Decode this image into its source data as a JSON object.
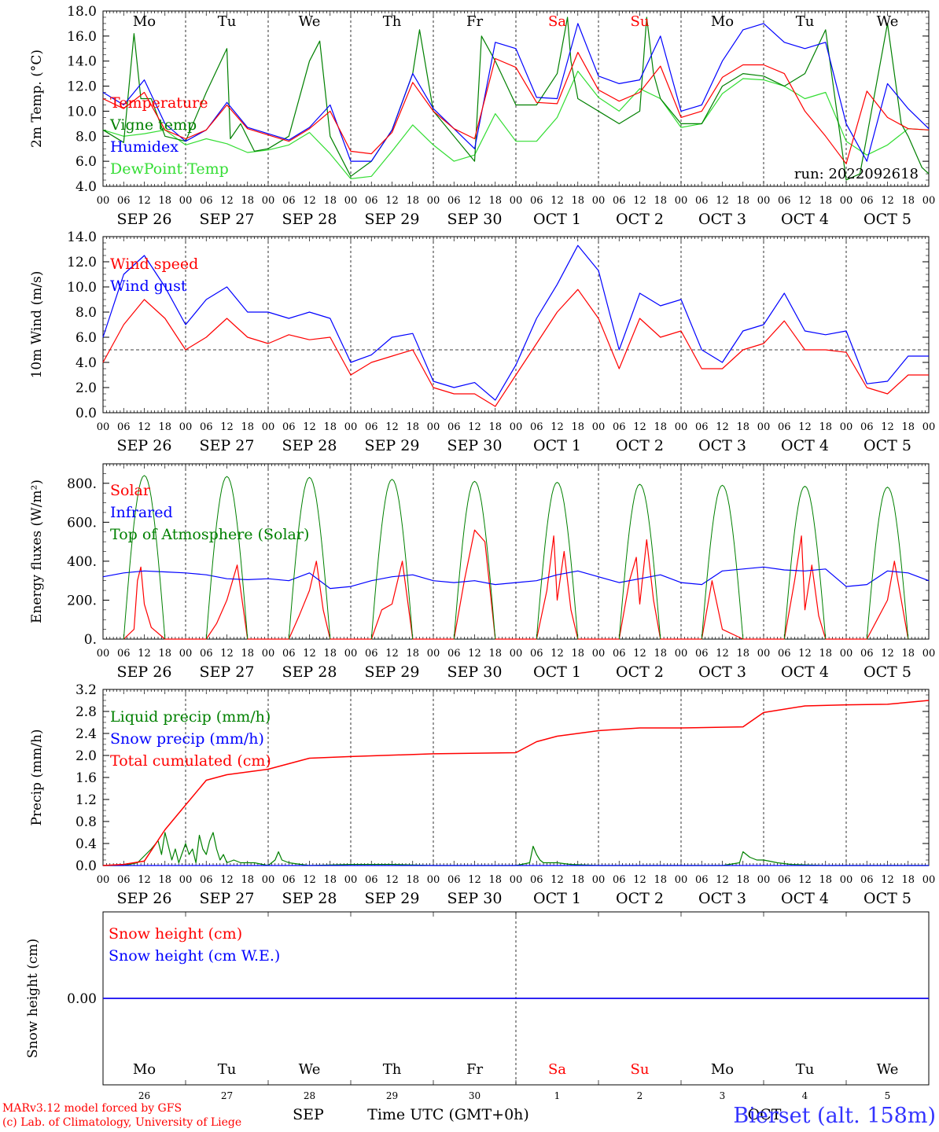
{
  "colors": {
    "temperature": "#ff0000",
    "vigne": "#008000",
    "humidex": "#0000ff",
    "dewpoint": "#33dd33",
    "wind_speed": "#ff0000",
    "wind_gust": "#0000ff",
    "solar": "#ff0000",
    "infrared": "#0000ff",
    "toa": "#008000",
    "liquid": "#008000",
    "snow_precip": "#0000ff",
    "cumulated": "#ff0000",
    "snow_height": "#ff0000",
    "snow_we": "#0000ff",
    "weekend": "#ff0000",
    "station": "#3333ff",
    "credit": "#ff0000"
  },
  "time_axis": {
    "hour_ticks": [
      "00",
      "06",
      "12",
      "18"
    ],
    "end_tick": "00",
    "date_labels": [
      "SEP 26",
      "SEP 27",
      "SEP 28",
      "SEP 29",
      "SEP 30",
      "OCT 1",
      "OCT 2",
      "OCT 3",
      "OCT 4",
      "OCT 5"
    ],
    "weekdays": [
      "Mo",
      "Tu",
      "We",
      "Th",
      "Fr",
      "Sa",
      "Su",
      "Mo",
      "Tu",
      "We"
    ],
    "weekend_flags": [
      false,
      false,
      false,
      false,
      false,
      true,
      true,
      false,
      false,
      false
    ],
    "day_numbers": [
      "26",
      "27",
      "28",
      "29",
      "30",
      "1",
      "2",
      "3",
      "4",
      "5"
    ],
    "month_sep": "SEP",
    "month_oct": "OCT",
    "xlabel": "Time UTC (GMT+0h)"
  },
  "footer": {
    "credit_line1": "MARv3.12 model forced by GFS",
    "credit_line2": "(c) Lab. of Climatology, University of Liege",
    "station": "Bierset (alt. 158m)"
  },
  "chart_data": [
    {
      "type": "line",
      "ylabel": "2m Temp. (°C)",
      "ylim": [
        4,
        18
      ],
      "ytick_labels": [
        "4.0",
        "6.0",
        "8.0",
        "10.0",
        "12.0",
        "14.0",
        "16.0",
        "18.0"
      ],
      "annotation": "run: 2022092618",
      "x_unit": "hours since SEP 26 00 UTC",
      "series": [
        {
          "name": "Temperature",
          "x": [
            0,
            6,
            12,
            15,
            18,
            24,
            30,
            36,
            42,
            48,
            54,
            60,
            66,
            72,
            78,
            84,
            90,
            96,
            102,
            108,
            114,
            120,
            126,
            132,
            138,
            144,
            150,
            156,
            162,
            168,
            174,
            180,
            186,
            192,
            198,
            204,
            210,
            216,
            222,
            228,
            234,
            240
          ],
          "values": [
            11,
            10.2,
            11.5,
            10,
            8.5,
            7.8,
            8.5,
            10.5,
            8.6,
            8.1,
            7.6,
            8.6,
            10,
            6.8,
            6.6,
            8.3,
            12.3,
            10,
            8.6,
            7.8,
            14.2,
            13.5,
            10.7,
            10.6,
            14.7,
            11.7,
            10.8,
            11.5,
            13.6,
            9.5,
            10,
            12.7,
            13.7,
            13.7,
            13,
            10,
            8,
            5.8,
            11.6,
            9.5,
            8.6,
            8.5
          ]
        },
        {
          "name": "Vigne temp",
          "x": [
            0,
            6,
            9,
            11,
            14,
            18,
            24,
            30,
            36,
            37,
            40,
            44,
            48,
            54,
            60,
            63,
            66,
            72,
            78,
            84,
            90,
            92,
            96,
            102,
            108,
            110,
            114,
            120,
            126,
            132,
            135,
            136,
            138,
            144,
            150,
            156,
            158,
            160,
            162,
            168,
            174,
            180,
            186,
            192,
            198,
            204,
            210,
            216,
            220,
            222,
            226,
            228,
            232,
            234,
            238,
            240
          ],
          "values": [
            8.5,
            7.5,
            16.2,
            11,
            11,
            8,
            7.6,
            11.5,
            15,
            7.8,
            9,
            6.8,
            7,
            8,
            14,
            15.6,
            8,
            4.8,
            6,
            8.5,
            13,
            16.5,
            10,
            8,
            6,
            16,
            14,
            10.5,
            10.5,
            13,
            17.5,
            14,
            11,
            10,
            9,
            10,
            17.5,
            13,
            11,
            9,
            9,
            12,
            13,
            12.8,
            12,
            13,
            16.5,
            4.5,
            5,
            8,
            14,
            17,
            9,
            8,
            5.5,
            5
          ]
        },
        {
          "name": "Humidex",
          "x": [
            0,
            6,
            12,
            18,
            24,
            30,
            36,
            42,
            48,
            54,
            60,
            66,
            72,
            78,
            84,
            90,
            96,
            102,
            108,
            114,
            120,
            126,
            132,
            138,
            144,
            150,
            156,
            162,
            168,
            174,
            180,
            186,
            192,
            198,
            204,
            210,
            216,
            222,
            228,
            234,
            240
          ],
          "values": [
            11.5,
            10.5,
            12.5,
            9,
            7.6,
            8.5,
            10.7,
            8.7,
            8.2,
            7.7,
            8.7,
            10.5,
            6,
            6,
            8.5,
            13,
            10.2,
            8.6,
            7,
            15.5,
            15,
            11.1,
            11,
            17,
            12.8,
            12.2,
            12.5,
            16,
            10,
            10.5,
            14,
            16.5,
            17,
            15.5,
            15,
            15.5,
            9,
            6,
            12.2,
            10.2,
            8.6
          ]
        },
        {
          "name": "DewPoint Temp",
          "x": [
            0,
            6,
            12,
            18,
            24,
            30,
            36,
            42,
            48,
            54,
            60,
            66,
            72,
            78,
            84,
            90,
            96,
            102,
            108,
            114,
            120,
            126,
            132,
            138,
            144,
            150,
            156,
            162,
            168,
            174,
            180,
            186,
            192,
            198,
            204,
            210,
            216,
            222,
            228,
            234,
            240
          ],
          "values": [
            8.5,
            8,
            8.2,
            8.5,
            7.3,
            7.8,
            7.4,
            6.7,
            6.9,
            7.3,
            8.3,
            6.6,
            4.6,
            4.8,
            6.8,
            8.9,
            7.3,
            6,
            6.5,
            9.8,
            7.6,
            7.6,
            9.5,
            13.2,
            11.1,
            10,
            11.8,
            11,
            8.7,
            9,
            11.4,
            12.6,
            12.5,
            12,
            11,
            11.5,
            7.6,
            6.5,
            7.3,
            8.6,
            8.5
          ]
        }
      ]
    },
    {
      "type": "line",
      "ylabel": "10m Wind (m/s)",
      "ylim": [
        0,
        14
      ],
      "ytick_labels": [
        "0.0",
        "2.0",
        "4.0",
        "6.0",
        "8.0",
        "10.0",
        "12.0",
        "14.0"
      ],
      "reference_line": 5,
      "x_unit": "hours since SEP 26 00 UTC",
      "series": [
        {
          "name": "Wind speed",
          "x": [
            0,
            6,
            12,
            18,
            24,
            30,
            36,
            42,
            48,
            54,
            60,
            66,
            72,
            78,
            84,
            90,
            96,
            102,
            108,
            114,
            120,
            126,
            132,
            138,
            144,
            150,
            156,
            162,
            168,
            174,
            180,
            186,
            192,
            198,
            204,
            210,
            216,
            222,
            228,
            234,
            240
          ],
          "values": [
            4,
            7,
            9,
            7.5,
            5,
            6,
            7.5,
            6,
            5.5,
            6.2,
            5.8,
            6,
            3,
            4,
            4.5,
            5,
            2,
            1.5,
            1.5,
            0.5,
            3,
            5.5,
            8,
            9.8,
            7.5,
            3.5,
            7.5,
            6,
            6.5,
            3.5,
            3.5,
            5,
            5.5,
            7.3,
            5,
            5,
            4.8,
            2,
            1.5,
            3,
            3
          ]
        },
        {
          "name": "Wind gust",
          "x": [
            0,
            6,
            12,
            18,
            24,
            30,
            36,
            42,
            48,
            54,
            60,
            66,
            72,
            78,
            84,
            90,
            96,
            102,
            108,
            114,
            120,
            126,
            132,
            138,
            144,
            150,
            156,
            162,
            168,
            174,
            180,
            186,
            192,
            198,
            204,
            210,
            216,
            222,
            228,
            234,
            240
          ],
          "values": [
            6,
            11,
            12.5,
            10,
            7,
            9,
            10,
            8,
            8,
            7.5,
            8,
            7.5,
            4,
            4.6,
            6,
            6.3,
            2.5,
            2,
            2.4,
            1,
            3.8,
            7.5,
            10.2,
            13.3,
            11.3,
            5,
            9.5,
            8.5,
            9,
            5,
            4,
            6.5,
            7,
            9.5,
            6.5,
            6.2,
            6.5,
            2.3,
            2.5,
            4.5,
            4.5
          ]
        }
      ]
    },
    {
      "type": "line",
      "ylabel": "Energy fluxes (W/m²)",
      "ylim": [
        0,
        900
      ],
      "ytick_labels": [
        "0.",
        "200.",
        "400.",
        "600.",
        "800."
      ],
      "x_unit": "hours since SEP 26 00 UTC",
      "series": [
        {
          "name": "Solar",
          "x": [
            6,
            9,
            10,
            11,
            12,
            14,
            18,
            30,
            33,
            36,
            39,
            42,
            54,
            57,
            60,
            62,
            64,
            66,
            78,
            81,
            84,
            87,
            90,
            102,
            105,
            108,
            111,
            114,
            126,
            129,
            131,
            132,
            134,
            136,
            138,
            150,
            153,
            155,
            156,
            158,
            160,
            162,
            174,
            177,
            180,
            186,
            198,
            201,
            203,
            204,
            206,
            208,
            210,
            222,
            225,
            228,
            230,
            234
          ],
          "values": [
            0,
            50,
            300,
            370,
            180,
            60,
            0,
            0,
            80,
            200,
            380,
            0,
            0,
            120,
            250,
            400,
            150,
            0,
            0,
            150,
            180,
            400,
            0,
            0,
            300,
            560,
            500,
            0,
            0,
            250,
            530,
            200,
            450,
            150,
            0,
            0,
            300,
            420,
            180,
            510,
            200,
            0,
            0,
            300,
            50,
            0,
            0,
            300,
            530,
            150,
            380,
            120,
            0,
            0,
            100,
            200,
            400,
            0
          ]
        },
        {
          "name": "Infrared",
          "x": [
            0,
            6,
            12,
            18,
            24,
            30,
            36,
            42,
            48,
            54,
            60,
            66,
            72,
            78,
            84,
            90,
            96,
            102,
            108,
            114,
            120,
            126,
            132,
            138,
            144,
            150,
            156,
            162,
            168,
            174,
            180,
            186,
            192,
            198,
            204,
            210,
            216,
            222,
            228,
            234,
            240
          ],
          "values": [
            320,
            340,
            350,
            345,
            340,
            330,
            310,
            305,
            310,
            300,
            340,
            260,
            270,
            300,
            320,
            330,
            300,
            290,
            300,
            280,
            290,
            300,
            330,
            350,
            320,
            290,
            310,
            330,
            290,
            280,
            350,
            360,
            370,
            355,
            350,
            360,
            270,
            280,
            350,
            340,
            300
          ]
        },
        {
          "name": "Top of Atmosphere (Solar)",
          "day_peaks": [
            840,
            835,
            830,
            820,
            810,
            805,
            795,
            790,
            785,
            780
          ],
          "sunrise_hour": 6,
          "sunset_hour": 18
        }
      ]
    },
    {
      "type": "line",
      "ylabel": "Precip (mm/h)",
      "ylim": [
        0,
        3.2
      ],
      "ytick_labels": [
        "0.0",
        "0.4",
        "0.8",
        "1.2",
        "1.6",
        "2.0",
        "2.4",
        "2.8",
        "3.2"
      ],
      "x_unit": "hours since SEP 26 00 UTC",
      "series": [
        {
          "name": "Liquid precip (mm/h)",
          "x": [
            0,
            6,
            10,
            14,
            16,
            17,
            18,
            20,
            21,
            22,
            24,
            25,
            26,
            27,
            28,
            29,
            30,
            31,
            32,
            33,
            34,
            35,
            36,
            38,
            40,
            44,
            48,
            50,
            51,
            52,
            54,
            60,
            72,
            84,
            96,
            108,
            120,
            124,
            125,
            126,
            127,
            128,
            130,
            132,
            136,
            144,
            150,
            160,
            180,
            185,
            186,
            187,
            188,
            190,
            192,
            196,
            200,
            210,
            240
          ],
          "values": [
            0,
            0,
            0.05,
            0.3,
            0.45,
            0.2,
            0.6,
            0.1,
            0.3,
            0.05,
            0.4,
            0.2,
            0.3,
            0.05,
            0.55,
            0.3,
            0.2,
            0.45,
            0.6,
            0.3,
            0.1,
            0.2,
            0.05,
            0.1,
            0.05,
            0.05,
            0,
            0.1,
            0.25,
            0.1,
            0.05,
            0,
            0.02,
            0.02,
            0,
            0,
            0,
            0.05,
            0.35,
            0.2,
            0.1,
            0.05,
            0.05,
            0.05,
            0.02,
            0,
            0,
            0,
            0,
            0.05,
            0.25,
            0.2,
            0.15,
            0.1,
            0.1,
            0.05,
            0.02,
            0,
            0
          ]
        },
        {
          "name": "Snow precip (mm/h)",
          "x": [
            0,
            240
          ],
          "values": [
            0,
            0
          ]
        },
        {
          "name": "Total cumulated (cm)",
          "x": [
            0,
            6,
            12,
            18,
            24,
            30,
            36,
            48,
            60,
            72,
            96,
            120,
            126,
            132,
            144,
            156,
            168,
            186,
            192,
            204,
            216,
            228,
            240
          ],
          "values": [
            0,
            0.02,
            0.08,
            0.65,
            1.1,
            1.55,
            1.65,
            1.75,
            1.95,
            1.98,
            2.03,
            2.05,
            2.25,
            2.35,
            2.45,
            2.5,
            2.5,
            2.52,
            2.78,
            2.9,
            2.92,
            2.93,
            3.0
          ]
        }
      ]
    },
    {
      "type": "line",
      "ylabel": "Snow height (cm)",
      "ytick_labels": [
        "0.00"
      ],
      "x_unit": "hours since SEP 26 00 UTC",
      "series": [
        {
          "name": "Snow height (cm)",
          "x": [
            0,
            240
          ],
          "values": [
            0,
            0
          ]
        },
        {
          "name": "Snow height (cm W.E.)",
          "x": [
            0,
            240
          ],
          "values": [
            0,
            0
          ]
        }
      ]
    }
  ]
}
